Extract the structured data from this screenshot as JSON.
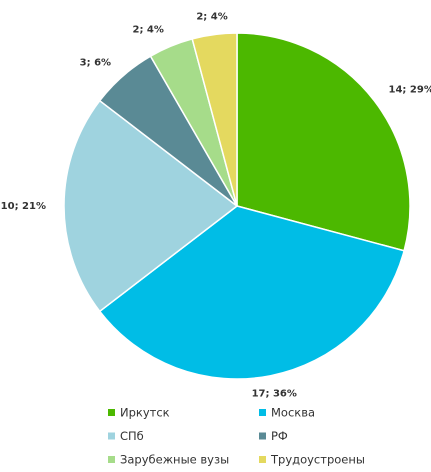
{
  "chart_data": {
    "type": "pie",
    "categories": [
      "Иркутск",
      "Москва",
      "СПб",
      "РФ",
      "Зарубежные вузы",
      "Трудоустроены"
    ],
    "values": [
      14,
      17,
      10,
      3,
      2,
      2
    ],
    "value_labels": [
      "14; 29%",
      "17; 36%",
      "10; 21%",
      "3; 6%",
      "2; 4%",
      "2; 4%"
    ],
    "colors": [
      "#4cb800",
      "#00bde6",
      "#9fd3df",
      "#5a8a95",
      "#a6dc8a",
      "#e4d95f"
    ],
    "legend": "bottom"
  }
}
